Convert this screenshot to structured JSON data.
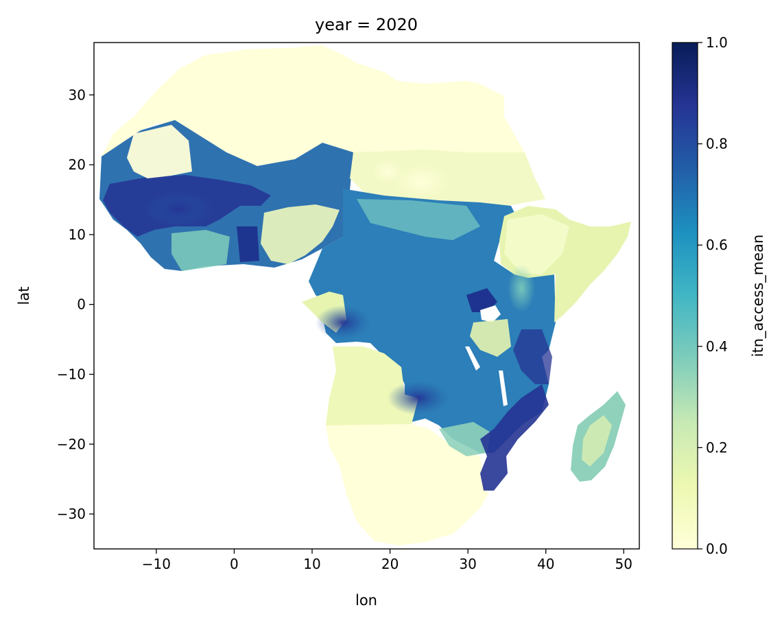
{
  "title": "year = 2020",
  "map": {
    "xlabel": "lon",
    "ylabel": "lat",
    "xlim": [
      -18,
      52
    ],
    "ylim": [
      -35,
      37.5
    ],
    "xticks": [
      {
        "value": -10,
        "label": "−10"
      },
      {
        "value": 0,
        "label": "0"
      },
      {
        "value": 10,
        "label": "10"
      },
      {
        "value": 20,
        "label": "20"
      },
      {
        "value": 30,
        "label": "30"
      },
      {
        "value": 40,
        "label": "40"
      },
      {
        "value": 50,
        "label": "50"
      }
    ],
    "yticks": [
      {
        "value": 30,
        "label": "30"
      },
      {
        "value": 20,
        "label": "20"
      },
      {
        "value": 10,
        "label": "10"
      },
      {
        "value": 0,
        "label": "0"
      },
      {
        "value": -10,
        "label": "−10"
      },
      {
        "value": -20,
        "label": "−20"
      },
      {
        "value": -30,
        "label": "−30"
      }
    ]
  },
  "colorbar": {
    "label": "itn_access_mean",
    "colormap": "YlGnBu",
    "range": [
      0,
      1
    ],
    "ticks": [
      {
        "value": 0.0,
        "label": "0.0"
      },
      {
        "value": 0.2,
        "label": "0.2"
      },
      {
        "value": 0.4,
        "label": "0.4"
      },
      {
        "value": 0.6,
        "label": "0.6"
      },
      {
        "value": 0.8,
        "label": "0.8"
      },
      {
        "value": 1.0,
        "label": "1.0"
      }
    ],
    "stops": [
      "#ffffd9",
      "#edf8b1",
      "#c7e9b4",
      "#7fcdbb",
      "#41b6c4",
      "#1d91c0",
      "#225ea8",
      "#253494",
      "#081d58"
    ]
  }
}
